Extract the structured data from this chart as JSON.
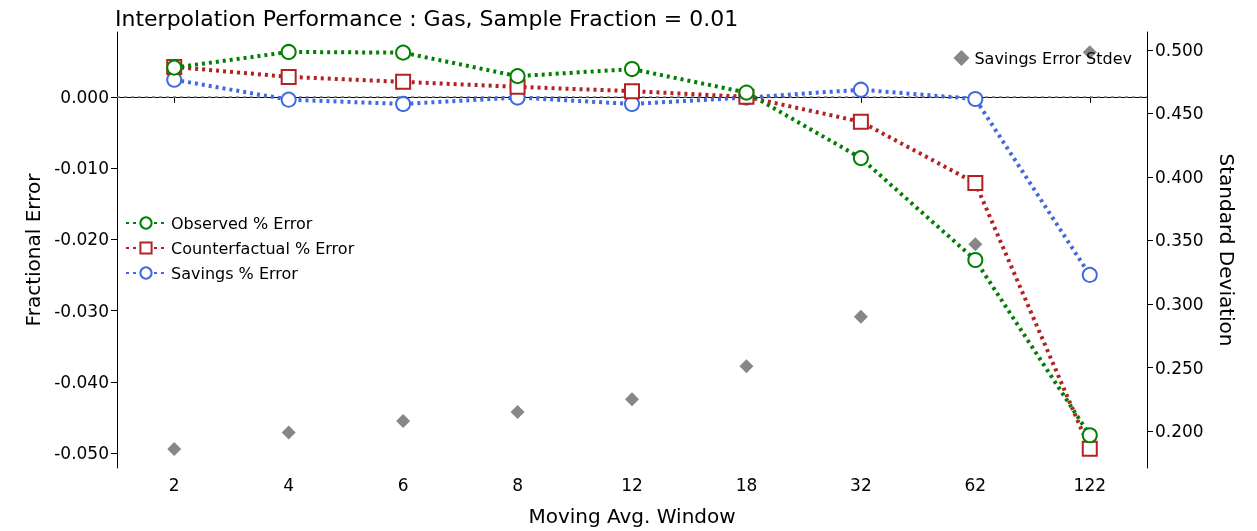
{
  "chart_data": {
    "type": "line",
    "title": "Interpolation Performance : Gas, Sample Fraction = 0.01",
    "xlabel": "Moving Avg. Window",
    "ylabel": "Fractional Error",
    "y2label": "Standard Deviation",
    "categories": [
      "2",
      "4",
      "6",
      "8",
      "12",
      "18",
      "32",
      "62",
      "122"
    ],
    "series": [
      {
        "name": "Observed % Error",
        "color": "#008000",
        "marker": "circle",
        "line_style": "dotted",
        "values": [
          0.0041,
          0.0063,
          0.0062,
          0.0029,
          0.0039,
          0.0006,
          -0.0086,
          -0.0229,
          -0.0475
        ]
      },
      {
        "name": "Counterfactual % Error",
        "color": "#b22222",
        "marker": "square",
        "line_style": "dotted",
        "values": [
          0.0042,
          0.0028,
          0.0021,
          0.0014,
          0.0008,
          0.0,
          -0.0035,
          -0.0121,
          -0.0494
        ]
      },
      {
        "name": "Savings % Error",
        "color": "#4169e1",
        "marker": "circle",
        "line_style": "dotted",
        "values": [
          0.0024,
          -0.0004,
          -0.001,
          -0.0001,
          -0.001,
          -0.0001,
          0.001,
          -0.0003,
          -0.025
        ]
      },
      {
        "name": "Savings Error Stdev",
        "type": "scatter",
        "axis": "y2",
        "color": "#696969",
        "marker": "diamond",
        "values": [
          0.186,
          0.199,
          0.208,
          0.215,
          0.225,
          0.251,
          0.29,
          0.347,
          0.498
        ]
      }
    ],
    "ylim": [
      -0.0521,
      0.0091
    ],
    "yticks": [
      {
        "value": -0.05,
        "label": "-0.050"
      },
      {
        "value": -0.04,
        "label": "-0.040"
      },
      {
        "value": -0.03,
        "label": "-0.030"
      },
      {
        "value": -0.02,
        "label": "-0.020"
      },
      {
        "value": -0.01,
        "label": "-0.010"
      },
      {
        "value": 0,
        "label": "0.000"
      }
    ],
    "y2lim": [
      0.171,
      0.514
    ],
    "y2ticks": [
      {
        "value": 0.2,
        "label": "0.200"
      },
      {
        "value": 0.25,
        "label": "0.250"
      },
      {
        "value": 0.3,
        "label": "0.300"
      },
      {
        "value": 0.35,
        "label": "0.350"
      },
      {
        "value": 0.4,
        "label": "0.400"
      },
      {
        "value": 0.45,
        "label": "0.450"
      },
      {
        "value": 0.5,
        "label": "0.500"
      }
    ],
    "ref_lines": [
      {
        "axis": "y",
        "value": 0,
        "color": "#808080",
        "line_style": "dotted"
      }
    ],
    "grid": false,
    "legend": "left"
  }
}
